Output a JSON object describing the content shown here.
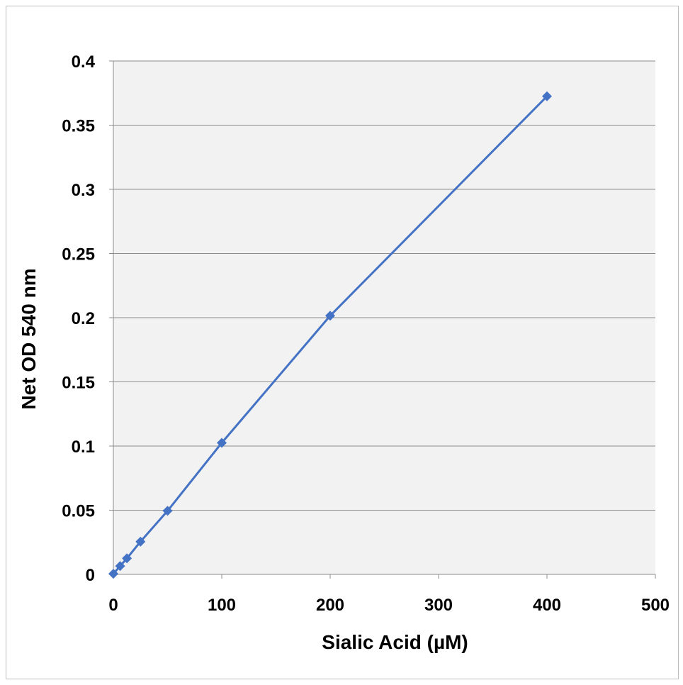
{
  "chart_data": {
    "type": "line",
    "title": "",
    "xlabel": "Sialic Acid (µM)",
    "ylabel": "Net OD 540 nm",
    "xlim": [
      0,
      500
    ],
    "ylim": [
      0,
      0.4
    ],
    "x_ticks": [
      "0",
      "100",
      "200",
      "300",
      "400",
      "500"
    ],
    "y_ticks": [
      "0",
      "0.05",
      "0.1",
      "0.15",
      "0.2",
      "0.25",
      "0.3",
      "0.35",
      "0.4"
    ],
    "grid": "horizontal",
    "marker": "diamond",
    "legend": "none",
    "colors": {
      "series": "#4472C4",
      "plot_background": "#f2f2f2",
      "gridline": "#8c8c8c",
      "frame_border": "#bdbdbd"
    },
    "series": [
      {
        "x": [
          0,
          6.25,
          12.5,
          25,
          50,
          100,
          200,
          400
        ],
        "y": [
          0.0005,
          0.0065,
          0.0125,
          0.0255,
          0.0495,
          0.1025,
          0.2015,
          0.3725
        ]
      }
    ]
  }
}
